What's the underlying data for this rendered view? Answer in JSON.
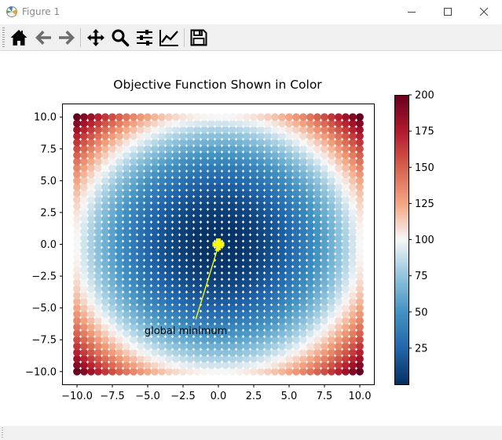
{
  "window": {
    "title": "Figure 1"
  },
  "toolbar": {
    "buttons": [
      {
        "name": "home-button",
        "icon": "home-icon"
      },
      {
        "name": "back-button",
        "icon": "arrow-left-icon"
      },
      {
        "name": "forward-button",
        "icon": "arrow-right-icon"
      },
      {
        "name": "pan-button",
        "icon": "move-icon"
      },
      {
        "name": "zoom-button",
        "icon": "magnifier-icon"
      },
      {
        "name": "configure-subplots-button",
        "icon": "sliders-icon"
      },
      {
        "name": "edit-axes-button",
        "icon": "line-chart-icon"
      },
      {
        "name": "save-button",
        "icon": "floppy-icon"
      }
    ]
  },
  "chart_data": {
    "type": "heatmap",
    "title": "Objective Function Shown in Color",
    "xlabel": "",
    "ylabel": "",
    "function": "x^2 + y^2",
    "grid_step": 0.5,
    "xlim": [
      -11,
      11
    ],
    "ylim": [
      -11,
      11
    ],
    "xticks": [
      -10.0,
      -7.5,
      -5.0,
      -2.5,
      0.0,
      2.5,
      5.0,
      7.5,
      10.0
    ],
    "yticks": [
      10.0,
      7.5,
      5.0,
      2.5,
      0.0,
      -2.5,
      -5.0,
      -7.5,
      -10.0
    ],
    "xtick_labels": [
      "−10.0",
      "−7.5",
      "−5.0",
      "−2.5",
      "0.0",
      "2.5",
      "5.0",
      "7.5",
      "10.0"
    ],
    "ytick_labels": [
      "10.0",
      "7.5",
      "5.0",
      "2.5",
      "0.0",
      "−2.5",
      "−5.0",
      "−7.5",
      "−10.0"
    ],
    "colormap": "RdBu_r",
    "colorbar": {
      "vmin": 0,
      "vmax": 200,
      "ticks": [
        25,
        50,
        75,
        100,
        125,
        150,
        175,
        200
      ],
      "tick_labels": [
        "25",
        "50",
        "75",
        "100",
        "125",
        "150",
        "175",
        "200"
      ]
    },
    "marker": {
      "x": 0,
      "y": 0,
      "symbol": "plus",
      "color": "#ffff00"
    },
    "annotation": {
      "text": "global minimum",
      "xy": [
        0,
        0
      ],
      "text_xy": [
        -5,
        -6.2
      ],
      "arrow_color": "#ffff00"
    }
  }
}
